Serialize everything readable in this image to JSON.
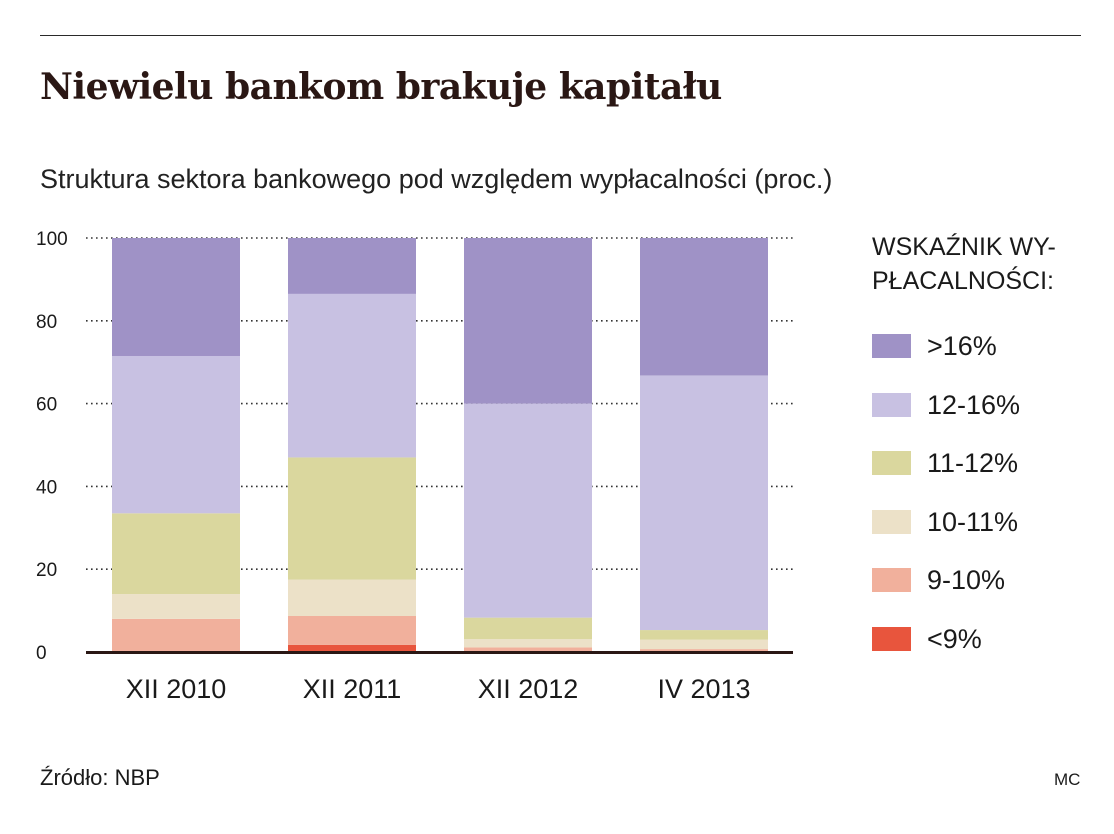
{
  "header": {
    "title": "Niewielu bankom brakuje kapitału",
    "subtitle": "Struktura sektora bankowego pod względem wypłacalności (proc.)"
  },
  "legend": {
    "title": "WSKAŹNIK WY-PŁACALNOŚCI:"
  },
  "footer": {
    "source": "Źródło: NBP",
    "credit": "MC"
  },
  "chart_data": {
    "type": "bar",
    "stacked": true,
    "title": "Niewielu bankom brakuje kapitału",
    "subtitle": "Struktura sektora bankowego pod względem wypłacalności (proc.)",
    "categories": [
      "XII 2010",
      "XII 2011",
      "XII 2012",
      "IV 2013"
    ],
    "ylim": [
      0,
      100
    ],
    "yticks": [
      0,
      20,
      40,
      60,
      80,
      100
    ],
    "grid": "dotted horizontal",
    "legend_position": "right",
    "series": [
      {
        "name": "<9%",
        "color": "#e8553d",
        "values": [
          0.3,
          1.7,
          0.3,
          0.2
        ]
      },
      {
        "name": "9-10%",
        "color": "#f1b09c",
        "values": [
          7.7,
          7.0,
          0.8,
          0.5
        ]
      },
      {
        "name": "10-11%",
        "color": "#ece1c8",
        "values": [
          6.0,
          8.8,
          2.0,
          2.3
        ]
      },
      {
        "name": "11-12%",
        "color": "#dad79e",
        "values": [
          19.5,
          29.5,
          5.2,
          2.3
        ]
      },
      {
        "name": "12-16%",
        "color": "#c8c1e2",
        "values": [
          38.0,
          39.5,
          51.7,
          61.5
        ]
      },
      {
        "name": ">16%",
        "color": "#9f92c6",
        "values": [
          28.5,
          13.5,
          40.0,
          33.2
        ]
      }
    ]
  }
}
